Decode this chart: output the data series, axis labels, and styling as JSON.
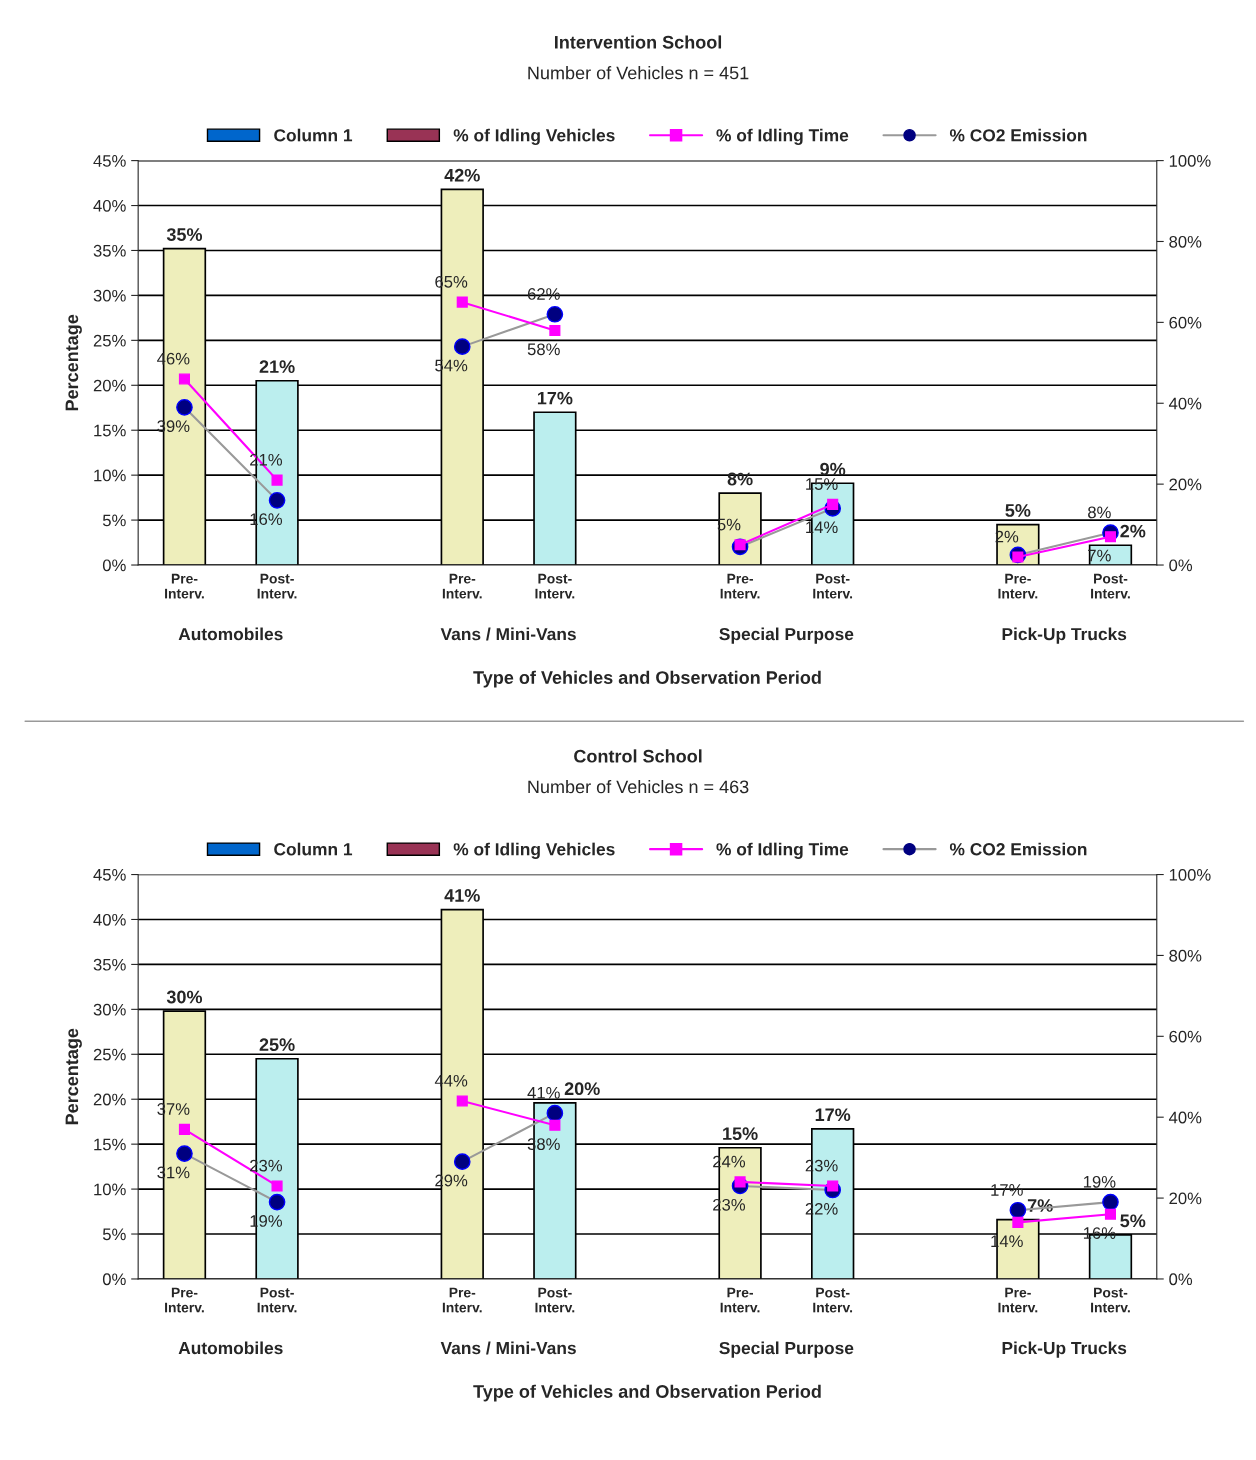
{
  "chart_data": [
    {
      "type": "bar",
      "title": "Intervention School",
      "subtitle": "Number of Vehicles n = 451",
      "xlabel": "Type of Vehicles and Observation Period",
      "ylabel": "Percentage",
      "categories": [
        "Pre-\nInterv.",
        "Post-\nInterv.",
        null,
        "Pre-\nInterv.",
        "Post-\nInterv.",
        null,
        "Pre-\nInterv.",
        "Post-\nInterv.",
        null,
        "Pre-\nInterv.",
        "Post-\nInterv."
      ],
      "annotations": [
        "Automobiles",
        "Vans / Mini-Vans",
        "Special Purpose",
        "Pick-Up Trucks"
      ],
      "ylim": [
        0,
        45
      ],
      "yticks": [
        {
          "value": 0,
          "label": "0%"
        },
        {
          "value": 5,
          "label": "5%"
        },
        {
          "value": 10,
          "label": "10%"
        },
        {
          "value": 15,
          "label": "15%"
        },
        {
          "value": 20,
          "label": "20%"
        },
        {
          "value": 25,
          "label": "25%"
        },
        {
          "value": 30,
          "label": "30%"
        },
        {
          "value": 35,
          "label": "35%"
        },
        {
          "value": 40,
          "label": "40%"
        },
        {
          "value": 45,
          "label": "45%"
        }
      ],
      "y2lim": [
        0,
        100
      ],
      "y2ticks": [
        {
          "value": 0,
          "label": "0%"
        },
        {
          "value": 20,
          "label": "20%"
        },
        {
          "value": 40,
          "label": "40%"
        },
        {
          "value": 60,
          "label": "60%"
        },
        {
          "value": 80,
          "label": "80%"
        },
        {
          "value": 100,
          "label": "100%"
        }
      ],
      "grid": "y",
      "legend": "top",
      "series": [
        {
          "name": "Column 1",
          "color": "#0066cc",
          "values": [
            null,
            null,
            null,
            null,
            null,
            null,
            null,
            null,
            null,
            null,
            null
          ]
        },
        {
          "name": "% of Idling Vehicles",
          "color": "#993355",
          "colors": [
            "#eeeebb",
            "#bbeeee",
            null,
            "#eeeebb",
            "#bbeeee",
            null,
            "#eeeebb",
            "#bbeeee",
            null,
            "#eeeebb",
            "#bbeeee"
          ],
          "values": [
            35.2,
            20.5,
            null,
            41.8,
            17,
            null,
            8,
            9.1,
            null,
            4.5,
            2.2
          ],
          "value_labels": [
            "35%",
            "21%",
            null,
            "42%",
            "17%",
            null,
            "8%",
            "9%",
            null,
            "5%",
            "2%"
          ]
        },
        {
          "name": "% of Idling Time",
          "type": "line",
          "axis": "y2",
          "color": "#ff00ff",
          "marker": "square",
          "values": [
            46,
            21,
            null,
            65,
            58,
            null,
            5,
            15,
            null,
            2,
            7
          ],
          "value_labels": [
            "46%",
            "21%",
            null,
            "65%",
            "58%",
            null,
            "5%",
            "15%",
            null,
            "2%",
            "7%"
          ]
        },
        {
          "name": "% CO2 Emission",
          "type": "line",
          "axis": "y2",
          "color": "#000080",
          "marker": "circle",
          "values": [
            39,
            16,
            null,
            54,
            62,
            null,
            4.5,
            14,
            null,
            2.5,
            8
          ],
          "value_labels": [
            "39%",
            "16%",
            null,
            "54%",
            "62%",
            null,
            null,
            "14%",
            null,
            null,
            "8%"
          ]
        }
      ]
    },
    {
      "type": "bar",
      "title": "Control School",
      "subtitle": "Number of Vehicles n = 463",
      "xlabel": "Type of Vehicles and Observation Period",
      "ylabel": "Percentage",
      "categories": [
        "Pre-\nInterv.",
        "Post-\nInterv.",
        null,
        "Pre-\nInterv.",
        "Post-\nInterv.",
        null,
        "Pre-\nInterv.",
        "Post-\nInterv.",
        null,
        "Pre-\nInterv.",
        "Post-\nInterv."
      ],
      "annotations": [
        "Automobiles",
        "Vans / Mini-Vans",
        "Special Purpose",
        "Pick-Up Trucks"
      ],
      "ylim": [
        0,
        45
      ],
      "yticks": [
        {
          "value": 0,
          "label": "0%"
        },
        {
          "value": 5,
          "label": "5%"
        },
        {
          "value": 10,
          "label": "10%"
        },
        {
          "value": 15,
          "label": "15%"
        },
        {
          "value": 20,
          "label": "20%"
        },
        {
          "value": 25,
          "label": "25%"
        },
        {
          "value": 30,
          "label": "30%"
        },
        {
          "value": 35,
          "label": "35%"
        },
        {
          "value": 40,
          "label": "40%"
        },
        {
          "value": 45,
          "label": "45%"
        }
      ],
      "y2lim": [
        0,
        100
      ],
      "y2ticks": [
        {
          "value": 0,
          "label": "0%"
        },
        {
          "value": 20,
          "label": "20%"
        },
        {
          "value": 40,
          "label": "40%"
        },
        {
          "value": 60,
          "label": "60%"
        },
        {
          "value": 80,
          "label": "80%"
        },
        {
          "value": 100,
          "label": "100%"
        }
      ],
      "grid": "y",
      "legend": "top",
      "series": [
        {
          "name": "Column 1",
          "color": "#0066cc",
          "values": [
            null,
            null,
            null,
            null,
            null,
            null,
            null,
            null,
            null,
            null,
            null
          ]
        },
        {
          "name": "% of Idling Vehicles",
          "color": "#993355",
          "colors": [
            "#eeeebb",
            "#bbeeee",
            null,
            "#eeeebb",
            "#bbeeee",
            null,
            "#eeeebb",
            "#bbeeee",
            null,
            "#eeeebb",
            "#bbeeee"
          ],
          "values": [
            29.8,
            24.5,
            null,
            41.1,
            19.6,
            null,
            14.6,
            16.7,
            null,
            6.6,
            4.9
          ],
          "value_labels": [
            "30%",
            "25%",
            null,
            "41%",
            "20%",
            null,
            "15%",
            "17%",
            null,
            "7%",
            "5%"
          ]
        },
        {
          "name": "% of Idling Time",
          "type": "line",
          "axis": "y2",
          "color": "#ff00ff",
          "marker": "square",
          "values": [
            37,
            23,
            null,
            44,
            38,
            null,
            24,
            23,
            null,
            14,
            16
          ],
          "value_labels": [
            "37%",
            "23%",
            null,
            "44%",
            "38%",
            null,
            "24%",
            "23%",
            null,
            "14%",
            "16%"
          ]
        },
        {
          "name": "% CO2 Emission",
          "type": "line",
          "axis": "y2",
          "color": "#000080",
          "marker": "circle",
          "values": [
            31,
            19,
            null,
            29,
            41,
            null,
            23,
            22,
            null,
            17,
            19
          ],
          "value_labels": [
            "31%",
            "19%",
            null,
            "29%",
            "41%",
            null,
            "23%",
            "22%",
            null,
            "17%",
            "19%"
          ]
        }
      ]
    }
  ]
}
